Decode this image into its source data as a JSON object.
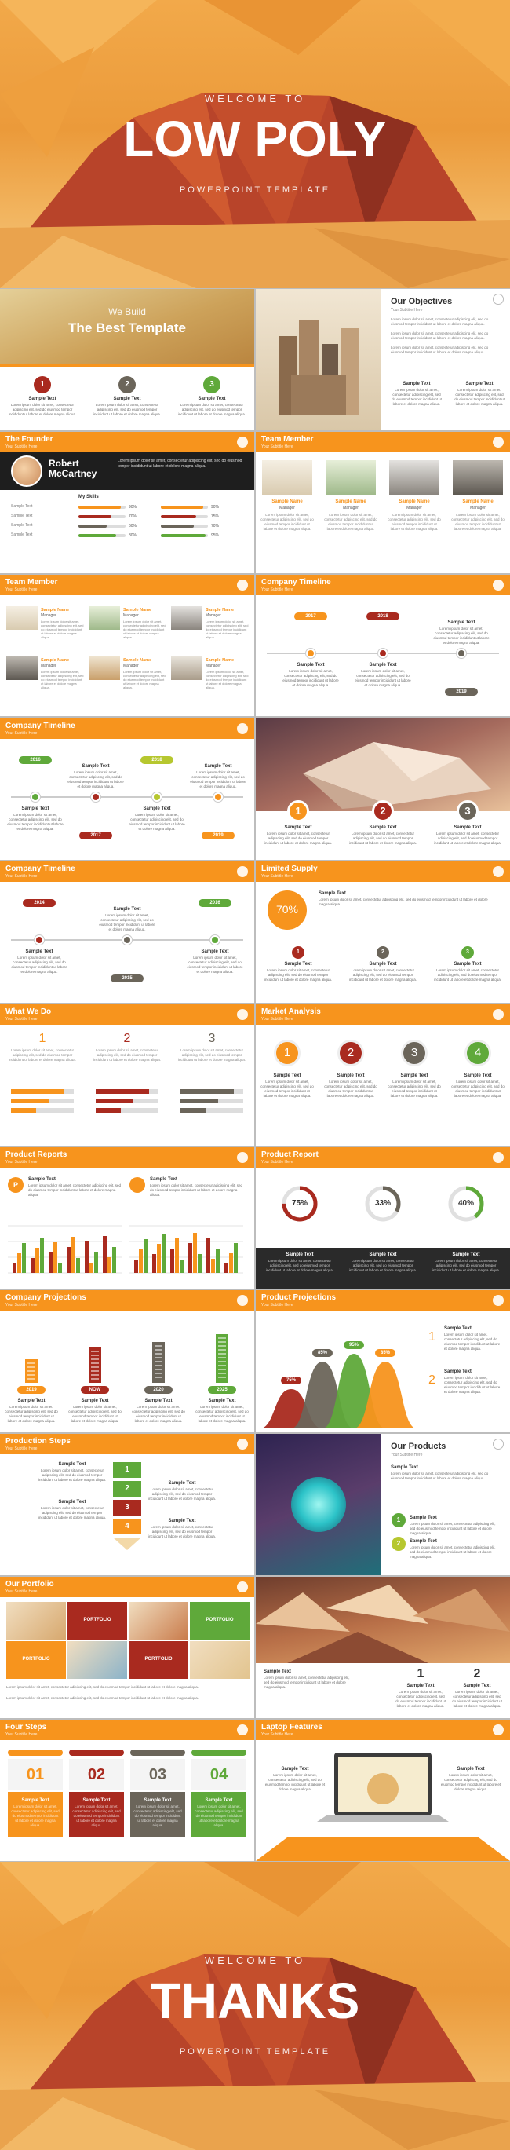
{
  "hero": {
    "welcome": "WELCOME TO",
    "title": "LOW POLY",
    "subtitle": "POWERPOINT TEMPLATE"
  },
  "common": {
    "sample": "Sample Text",
    "lorem": "Lorem ipsum dolor sit amet, consectetur adipiscing elit, sed do eiusmod tempor incididunt ut labore et dolore magna aliqua.",
    "subtitle": "Your Subtitle Here"
  },
  "slides": [
    {
      "kicker": "We Build",
      "title": "The Best Template",
      "steps": [
        "1",
        "2",
        "3"
      ]
    },
    {
      "title": "Our Objectives"
    },
    {
      "title": "The Founder",
      "name": "Robert McCartney",
      "skills_title": "My Skills",
      "skills": [
        {
          "value": 90,
          "label": "90%"
        },
        {
          "value": 70,
          "label": "70%"
        },
        {
          "value": 60,
          "label": "60%"
        },
        {
          "value": 80,
          "label": "80%"
        },
        {
          "value": 90,
          "label": "90%"
        },
        {
          "value": 75,
          "label": "75%"
        },
        {
          "value": 70,
          "label": "70%"
        },
        {
          "value": 95,
          "label": "95%"
        }
      ]
    },
    {
      "title": "Team Member",
      "members": [
        {
          "name": "Sample Name",
          "role": "Manager"
        },
        {
          "name": "Sample Name",
          "role": "Manager"
        },
        {
          "name": "Sample Name",
          "role": "Manager"
        },
        {
          "name": "Sample Name",
          "role": "Manager"
        }
      ]
    },
    {
      "title": "Team Member",
      "members": [
        {
          "name": "Sample Name",
          "role": "Manager"
        },
        {
          "name": "Sample Name",
          "role": "Manager"
        },
        {
          "name": "Sample Name",
          "role": "Manager"
        },
        {
          "name": "Sample Name",
          "role": "Manager"
        },
        {
          "name": "Sample Name",
          "role": "Manager"
        },
        {
          "name": "Sample Name",
          "role": "Manager"
        }
      ]
    },
    {
      "title": "Company Timeline",
      "years": [
        "2017",
        "2018",
        "2019"
      ]
    },
    {
      "title": "Company Timeline",
      "years": [
        "2016",
        "2017",
        "2018",
        "2019"
      ]
    },
    {
      "steps": [
        "1",
        "2",
        "3"
      ]
    },
    {
      "title": "Company Timeline",
      "years": [
        "2014",
        "2015",
        "2016"
      ]
    },
    {
      "title": "Limited Supply",
      "percent": "70%",
      "steps": [
        "1",
        "2",
        "3"
      ]
    },
    {
      "title": "What We Do",
      "steps": [
        "1",
        "2",
        "3"
      ]
    },
    {
      "title": "Market Analysis",
      "steps": [
        "1",
        "2",
        "3",
        "4"
      ]
    },
    {
      "title": "Product Reports",
      "badge": "P"
    },
    {
      "title": "Product Report",
      "rings": [
        {
          "value": 75,
          "label": "75%"
        },
        {
          "value": 33,
          "label": "33%"
        },
        {
          "value": 40,
          "label": "40%"
        }
      ]
    },
    {
      "title": "Company Projections",
      "years": [
        "2019",
        "NOW",
        "2020",
        "2025"
      ]
    },
    {
      "title": "Product Projections",
      "peaks": [
        "75%",
        "85%",
        "95%",
        "85%"
      ],
      "steps": [
        "1",
        "2"
      ]
    },
    {
      "title": "Production Steps",
      "steps": [
        "1",
        "2",
        "3",
        "4"
      ]
    },
    {
      "title": "Our Products",
      "steps": [
        "1",
        "2"
      ]
    },
    {
      "title": "Our Portfolio",
      "tiles": [
        "PORTFOLIO",
        "PORTFOLIO",
        "PORTFOLIO",
        "PORTFOLIO"
      ]
    },
    {
      "steps": [
        "1",
        "2"
      ]
    },
    {
      "title": "Four Steps",
      "steps": [
        "01",
        "02",
        "03",
        "04"
      ]
    },
    {
      "title": "Laptop Features"
    }
  ],
  "end": {
    "welcome": "WELCOME TO",
    "title": "THANKS",
    "subtitle": "POWERPOINT TEMPLATE"
  }
}
